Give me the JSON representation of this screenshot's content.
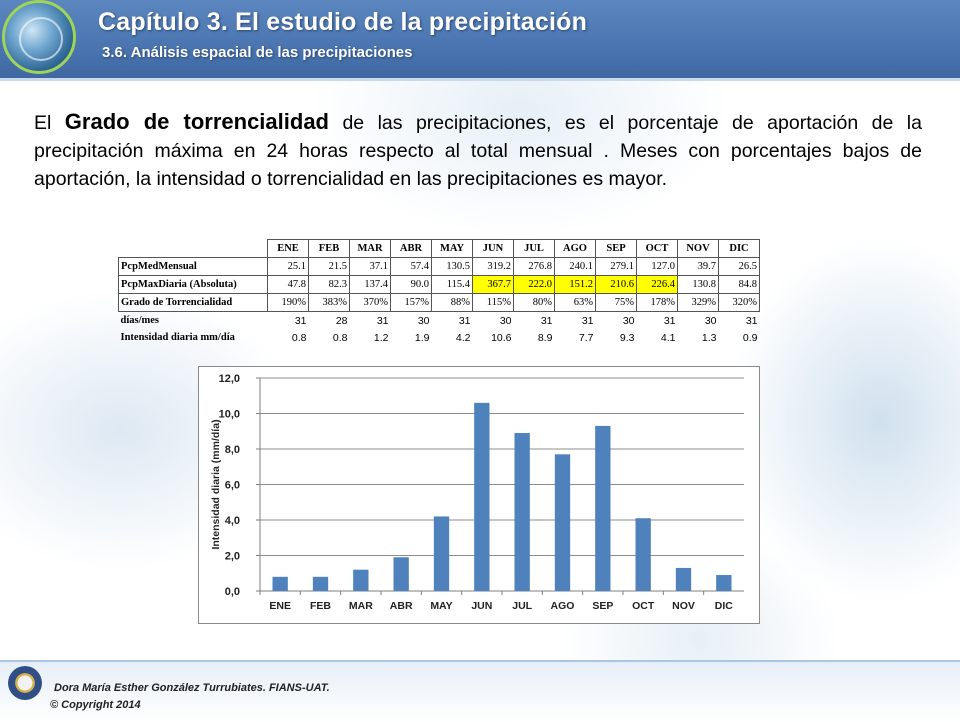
{
  "header": {
    "title": "Capítulo 3. El estudio de la precipitación",
    "subtitle": "3.6. Análisis espacial de las precipitaciones"
  },
  "paragraph": {
    "before": "El ",
    "strong": "Grado de torrencialidad",
    "after": " de las precipitaciones, es el porcentaje de aportación de la precipitación máxima en 24 horas respecto al total mensual . Meses con porcentajes bajos de aportación, la intensidad o torrencialidad en las precipitaciones es mayor."
  },
  "table": {
    "columns": [
      "ENE",
      "FEB",
      "MAR",
      "ABR",
      "MAY",
      "JUN",
      "JUL",
      "AGO",
      "SEP",
      "OCT",
      "NOV",
      "DIC"
    ],
    "rows": [
      {
        "label": "PcpMedMensual",
        "values": [
          "25.1",
          "21.5",
          "37.1",
          "57.4",
          "130.5",
          "319.2",
          "276.8",
          "240.1",
          "279.1",
          "127.0",
          "39.7",
          "26.5"
        ]
      },
      {
        "label": "PcpMaxDiaria (Absoluta)",
        "values": [
          "47.8",
          "82.3",
          "137.4",
          "90.0",
          "115.4",
          "367.7",
          "222.0",
          "151.2",
          "210.6",
          "226.4",
          "130.8",
          "84.8"
        ],
        "highlight": [
          5,
          6,
          7,
          8,
          9
        ]
      },
      {
        "label": "Grado de Torrencialidad",
        "values": [
          "190%",
          "383%",
          "370%",
          "157%",
          "88%",
          "115%",
          "80%",
          "63%",
          "75%",
          "178%",
          "329%",
          "320%"
        ]
      },
      {
        "label": "días/mes",
        "values": [
          "31",
          "28",
          "31",
          "30",
          "31",
          "30",
          "31",
          "31",
          "30",
          "31",
          "30",
          "31"
        ]
      },
      {
        "label": "Intensidad diaria mm/día",
        "values": [
          "0.8",
          "0.8",
          "1.2",
          "1.9",
          "4.2",
          "10.6",
          "8.9",
          "7.7",
          "9.3",
          "4.1",
          "1.3",
          "0.9"
        ]
      }
    ]
  },
  "chart_data": {
    "type": "bar",
    "categories": [
      "ENE",
      "FEB",
      "MAR",
      "ABR",
      "MAY",
      "JUN",
      "JUL",
      "AGO",
      "SEP",
      "OCT",
      "NOV",
      "DIC"
    ],
    "values": [
      0.8,
      0.8,
      1.2,
      1.9,
      4.2,
      10.6,
      8.9,
      7.7,
      9.3,
      4.1,
      1.3,
      0.9
    ],
    "title": "",
    "xlabel": "",
    "ylabel": "Intensidad diaria (mm/día)",
    "ylim": [
      0,
      12
    ],
    "yticks": [
      "0,0",
      "2,0",
      "4,0",
      "6,0",
      "8,0",
      "10,0",
      "12,0"
    ],
    "grid": true,
    "legend": "none",
    "bar_color": "#4f81bd"
  },
  "footer": {
    "author": "Dora María Esther González Turrubiates. FIANS-UAT.",
    "copyright": "© Copyright 2014"
  }
}
